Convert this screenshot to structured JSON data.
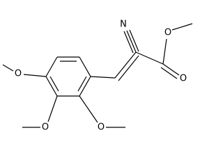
{
  "nodes": [
    {
      "label": "N"
    },
    {
      "label": "O"
    },
    {
      "label": "O"
    },
    {
      "label": "O"
    },
    {
      "label": "O"
    },
    {
      "label": "O"
    }
  ]
}
